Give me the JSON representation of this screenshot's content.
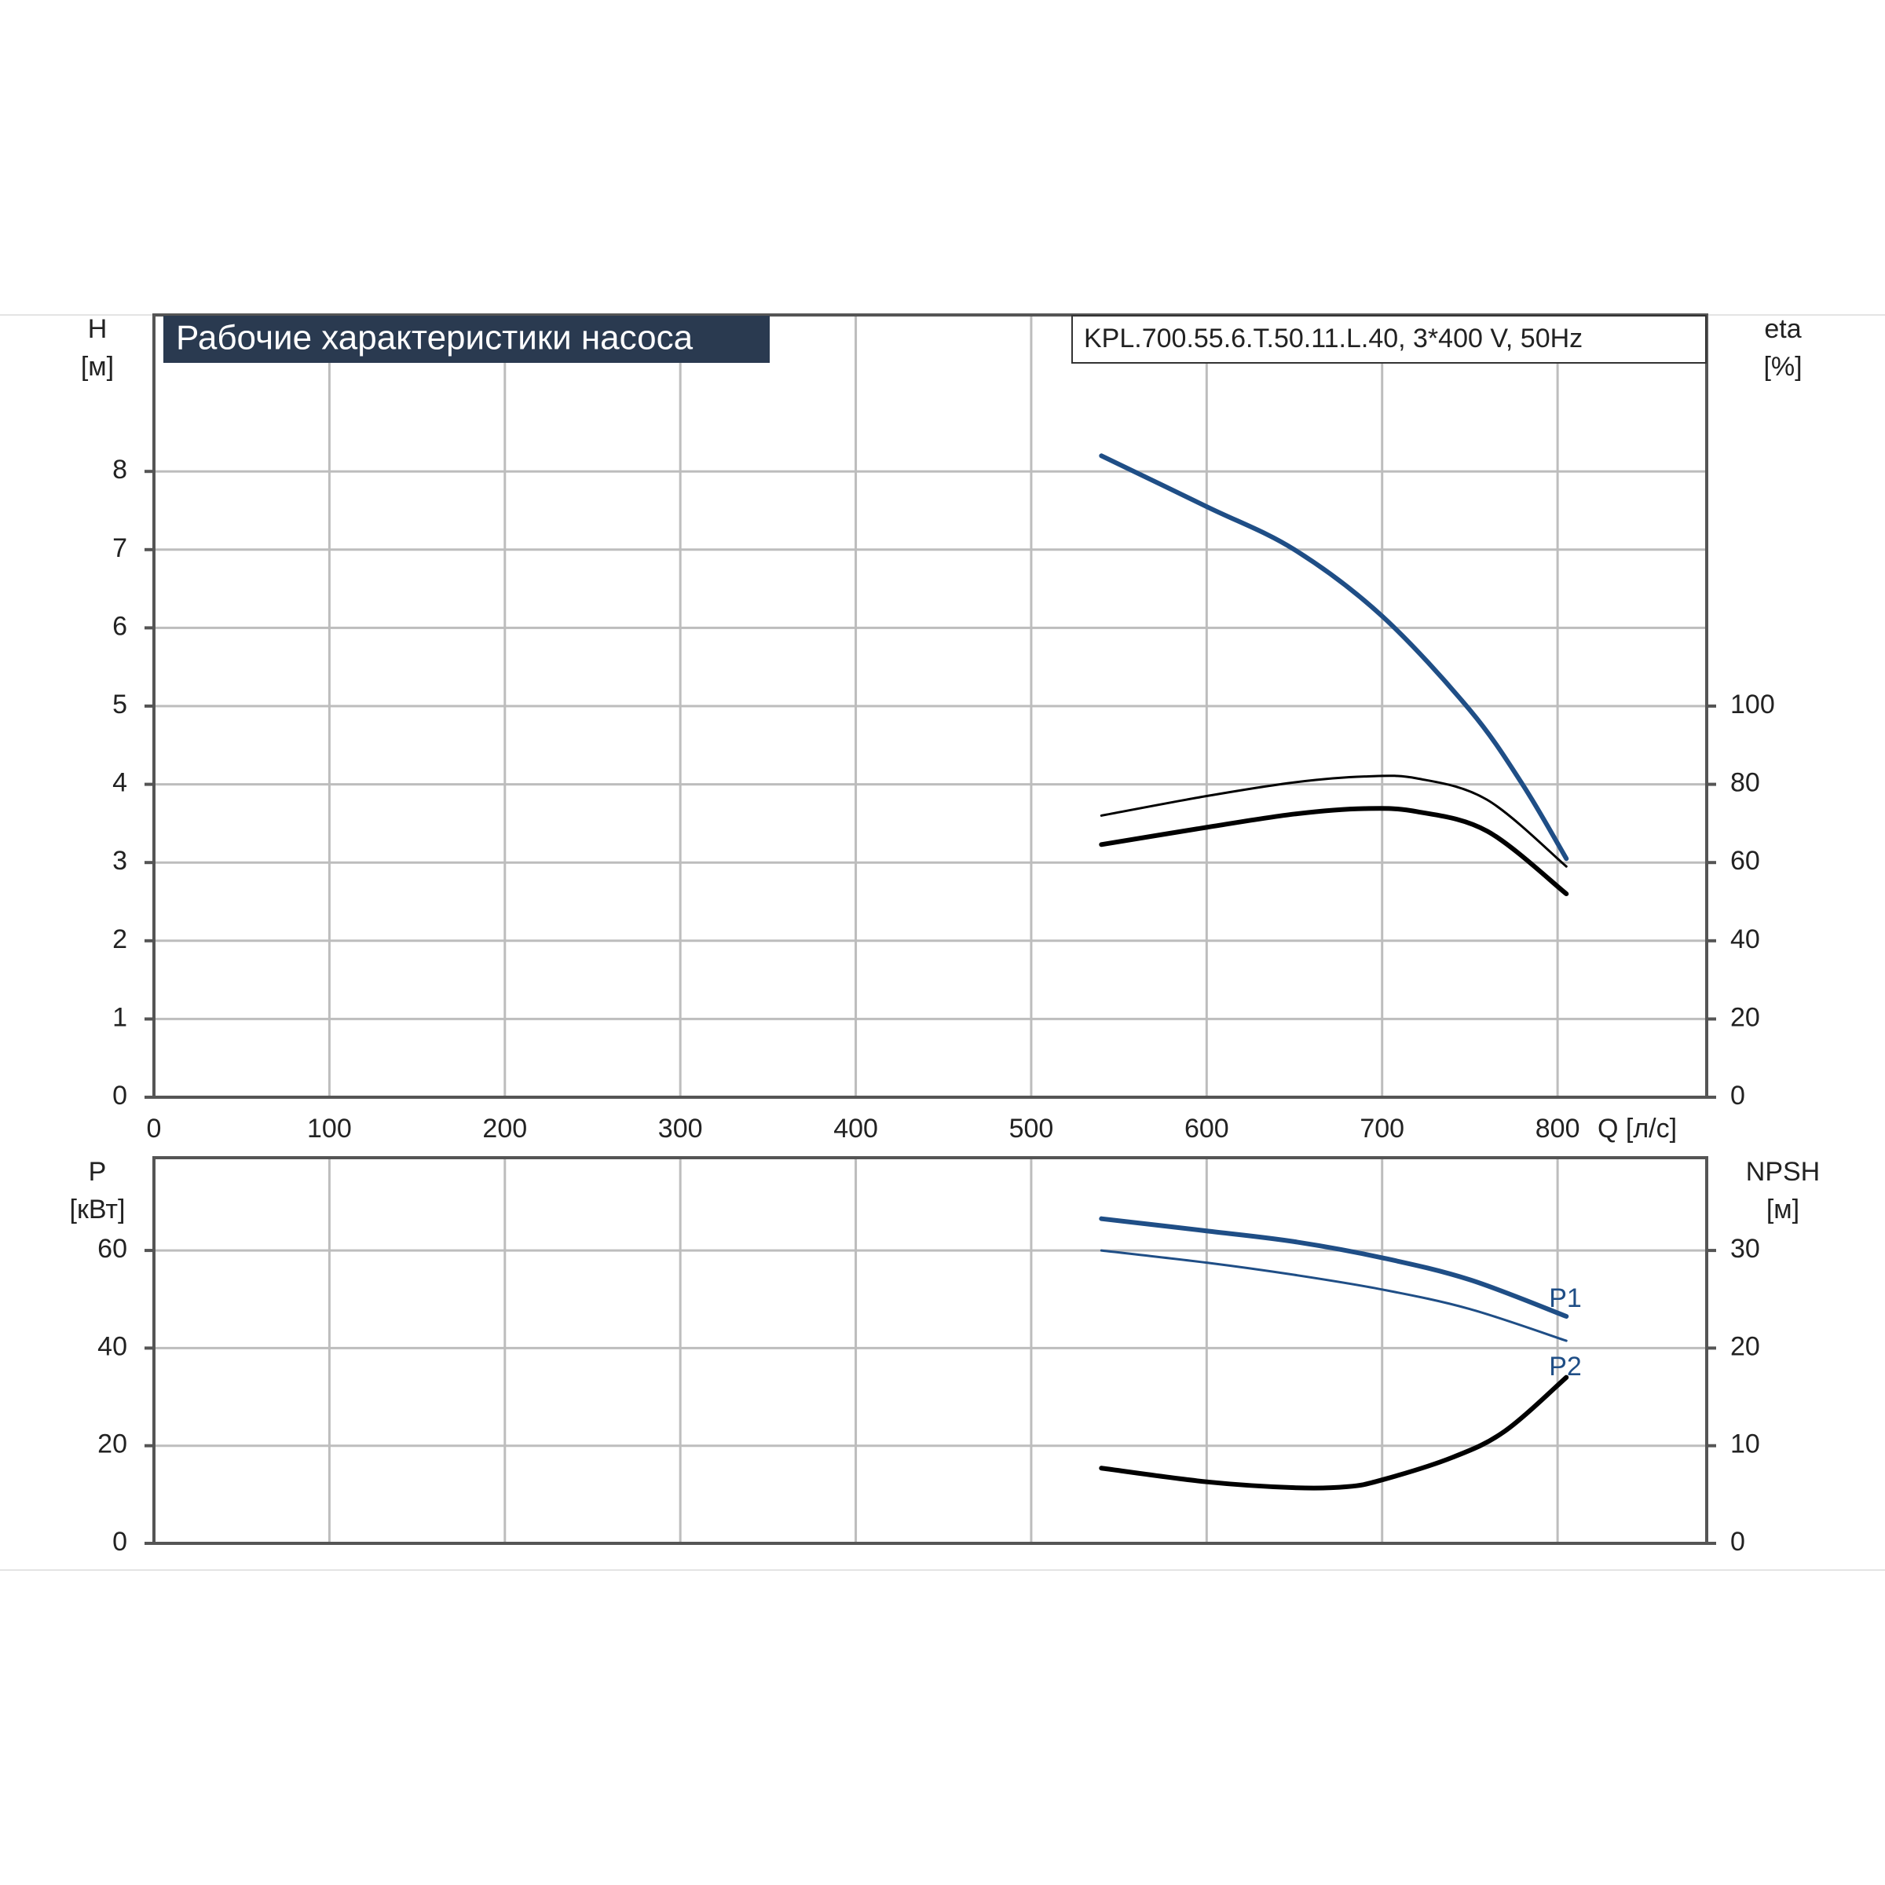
{
  "chart_data": [
    {
      "type": "line",
      "title": "Рабочие характеристики насоса",
      "model": "KPL.700.55.6.T.50.11.L.40, 3*400 V, 50Hz",
      "ylabel": "H",
      "yunit": "[м]",
      "y2label": "eta",
      "y2unit": "[%]",
      "xlabel": "Q [л/с]",
      "xlim": [
        0,
        885
      ],
      "xticks": [
        0,
        100,
        200,
        300,
        400,
        500,
        600,
        700,
        800
      ],
      "ylim": [
        0,
        10
      ],
      "yticks": [
        0,
        1,
        2,
        3,
        4,
        5,
        6,
        7,
        8
      ],
      "y2lim": [
        0,
        200
      ],
      "y2ticks": [
        0,
        20,
        40,
        60,
        80,
        100
      ],
      "grid": true,
      "series": [
        {
          "color": "#1f4e86",
          "width": 6,
          "x": [
            540,
            600,
            650,
            700,
            750,
            780,
            805
          ],
          "values": [
            8.2,
            7.55,
            7.0,
            6.15,
            4.95,
            4.0,
            3.05
          ]
        },
        {
          "color": "#000000",
          "width": 3,
          "axis": "y2",
          "x": [
            540,
            600,
            650,
            690,
            720,
            760,
            805
          ],
          "values": [
            72,
            77,
            80.5,
            82,
            81.5,
            76,
            59
          ]
        },
        {
          "color": "#000000",
          "width": 6,
          "axis": "y2",
          "x": [
            540,
            600,
            650,
            690,
            720,
            760,
            805
          ],
          "values": [
            64.6,
            69,
            72.4,
            73.8,
            73,
            68,
            52
          ]
        }
      ]
    },
    {
      "type": "line",
      "ylabel": "P",
      "yunit": "[кВт]",
      "y2label": "NPSH",
      "y2unit": "[м]",
      "xlim": [
        0,
        885
      ],
      "xticks": [
        0,
        100,
        200,
        300,
        400,
        500,
        600,
        700,
        800
      ],
      "ylim": [
        0,
        79
      ],
      "yticks": [
        0,
        20,
        40,
        60
      ],
      "y2lim": [
        0,
        39.5
      ],
      "y2ticks": [
        0,
        10,
        20,
        30
      ],
      "grid": true,
      "annotations": [
        "P1",
        "P2"
      ],
      "series": [
        {
          "color": "#1f4e86",
          "width": 6,
          "x": [
            540,
            600,
            650,
            700,
            750,
            805
          ],
          "values": [
            66.5,
            64,
            61.8,
            58.5,
            54,
            46.5
          ]
        },
        {
          "color": "#1f4e86",
          "width": 3,
          "x": [
            540,
            600,
            650,
            700,
            750,
            805
          ],
          "values": [
            60,
            57.5,
            55,
            52,
            48,
            41.5
          ]
        },
        {
          "color": "#000000",
          "width": 6,
          "axis": "y2",
          "x": [
            540,
            600,
            650,
            680,
            700,
            740,
            770,
            805
          ],
          "values": [
            7.7,
            6.3,
            5.7,
            5.8,
            6.5,
            8.8,
            11.5,
            17
          ]
        }
      ]
    }
  ]
}
